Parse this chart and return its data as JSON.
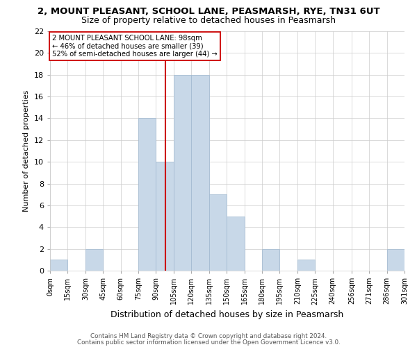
{
  "title": "2, MOUNT PLEASANT, SCHOOL LANE, PEASMARSH, RYE, TN31 6UT",
  "subtitle": "Size of property relative to detached houses in Peasmarsh",
  "xlabel": "Distribution of detached houses by size in Peasmarsh",
  "ylabel": "Number of detached properties",
  "bar_edges": [
    0,
    15,
    30,
    45,
    60,
    75,
    90,
    105,
    120,
    135,
    150,
    165,
    180,
    195,
    210,
    225,
    240,
    256,
    271,
    286,
    301
  ],
  "bar_heights": [
    1,
    0,
    2,
    0,
    0,
    14,
    10,
    18,
    18,
    7,
    5,
    0,
    2,
    0,
    1,
    0,
    0,
    0,
    0,
    2
  ],
  "tick_labels": [
    "0sqm",
    "15sqm",
    "30sqm",
    "45sqm",
    "60sqm",
    "75sqm",
    "90sqm",
    "105sqm",
    "120sqm",
    "135sqm",
    "150sqm",
    "165sqm",
    "180sqm",
    "195sqm",
    "210sqm",
    "225sqm",
    "240sqm",
    "256sqm",
    "271sqm",
    "286sqm",
    "301sqm"
  ],
  "bar_color": "#c8d8e8",
  "bar_edge_color": "#a0b8d0",
  "vline_x": 98,
  "vline_color": "#cc0000",
  "annotation_text": "2 MOUNT PLEASANT SCHOOL LANE: 98sqm\n← 46% of detached houses are smaller (39)\n52% of semi-detached houses are larger (44) →",
  "annotation_box_color": "#ffffff",
  "annotation_box_edge": "#cc0000",
  "ylim": [
    0,
    22
  ],
  "yticks": [
    0,
    2,
    4,
    6,
    8,
    10,
    12,
    14,
    16,
    18,
    20,
    22
  ],
  "grid_color": "#cccccc",
  "background_color": "#ffffff",
  "footer1": "Contains HM Land Registry data © Crown copyright and database right 2024.",
  "footer2": "Contains public sector information licensed under the Open Government Licence v3.0.",
  "title_fontsize": 9.5,
  "subtitle_fontsize": 9
}
